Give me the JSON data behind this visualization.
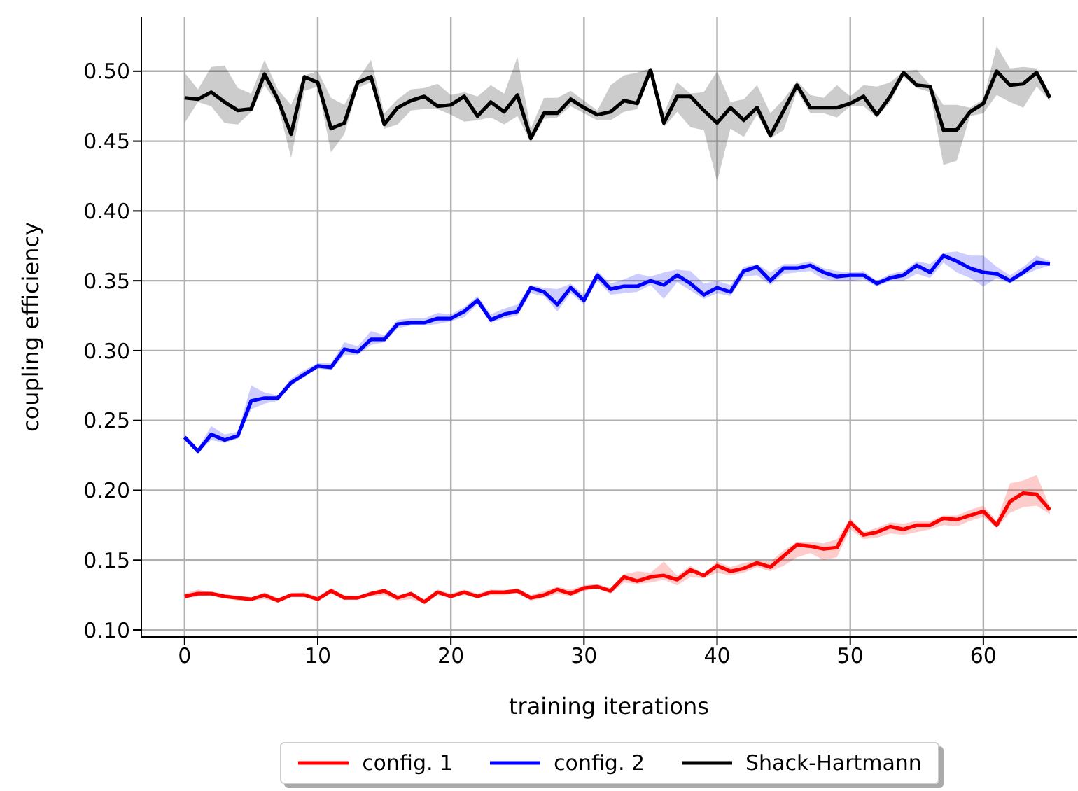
{
  "chart_data": {
    "type": "line",
    "xlabel": "training iterations",
    "ylabel": "coupling efficiency",
    "x": [
      0,
      1,
      2,
      3,
      4,
      5,
      6,
      7,
      8,
      9,
      10,
      11,
      12,
      13,
      14,
      15,
      16,
      17,
      18,
      19,
      20,
      21,
      22,
      23,
      24,
      25,
      26,
      27,
      28,
      29,
      30,
      31,
      32,
      33,
      34,
      35,
      36,
      37,
      38,
      39,
      40,
      41,
      42,
      43,
      44,
      45,
      46,
      47,
      48,
      49,
      50,
      51,
      52,
      53,
      54,
      55,
      56,
      57,
      58,
      59,
      60,
      61,
      62,
      63,
      64,
      65
    ],
    "xlim": [
      -3.25,
      67
    ],
    "xticks": [
      0,
      10,
      20,
      30,
      40,
      50,
      60
    ],
    "ylim": [
      0.095,
      0.539
    ],
    "yticks": [
      {
        "value": 0.1,
        "label": "0.10"
      },
      {
        "value": 0.15,
        "label": "0.15"
      },
      {
        "value": 0.2,
        "label": "0.20"
      },
      {
        "value": 0.25,
        "label": "0.25"
      },
      {
        "value": 0.3,
        "label": "0.30"
      },
      {
        "value": 0.35,
        "label": "0.35"
      },
      {
        "value": 0.4,
        "label": "0.40"
      },
      {
        "value": 0.45,
        "label": "0.45"
      },
      {
        "value": 0.5,
        "label": "0.50"
      }
    ],
    "grid": true,
    "legend": "bottom",
    "marker": "none",
    "line_style": "solid",
    "series": [
      {
        "name": "config. 1",
        "color": "#ff0000",
        "values": [
          0.124,
          0.126,
          0.126,
          0.124,
          0.123,
          0.122,
          0.125,
          0.121,
          0.125,
          0.125,
          0.122,
          0.128,
          0.123,
          0.123,
          0.126,
          0.128,
          0.123,
          0.126,
          0.12,
          0.127,
          0.124,
          0.127,
          0.124,
          0.127,
          0.127,
          0.128,
          0.123,
          0.125,
          0.129,
          0.126,
          0.13,
          0.131,
          0.128,
          0.138,
          0.135,
          0.138,
          0.139,
          0.136,
          0.143,
          0.139,
          0.146,
          0.142,
          0.144,
          0.148,
          0.145,
          0.153,
          0.161,
          0.16,
          0.158,
          0.159,
          0.177,
          0.168,
          0.17,
          0.174,
          0.172,
          0.175,
          0.175,
          0.18,
          0.179,
          0.182,
          0.185,
          0.175,
          0.192,
          0.198,
          0.197,
          0.186
        ],
        "lower": [
          0.123,
          0.124,
          0.125,
          0.123,
          0.121,
          0.121,
          0.122,
          0.12,
          0.124,
          0.124,
          0.121,
          0.126,
          0.122,
          0.122,
          0.124,
          0.125,
          0.121,
          0.122,
          0.119,
          0.125,
          0.123,
          0.125,
          0.123,
          0.125,
          0.125,
          0.126,
          0.121,
          0.123,
          0.126,
          0.124,
          0.128,
          0.13,
          0.126,
          0.134,
          0.133,
          0.134,
          0.136,
          0.132,
          0.138,
          0.137,
          0.141,
          0.139,
          0.141,
          0.145,
          0.142,
          0.146,
          0.152,
          0.155,
          0.15,
          0.152,
          0.172,
          0.165,
          0.166,
          0.169,
          0.168,
          0.17,
          0.172,
          0.175,
          0.174,
          0.178,
          0.181,
          0.173,
          0.184,
          0.188,
          0.189,
          0.183
        ],
        "upper": [
          0.126,
          0.129,
          0.127,
          0.126,
          0.124,
          0.123,
          0.127,
          0.123,
          0.126,
          0.127,
          0.124,
          0.13,
          0.125,
          0.124,
          0.127,
          0.129,
          0.125,
          0.127,
          0.122,
          0.129,
          0.126,
          0.129,
          0.126,
          0.129,
          0.128,
          0.13,
          0.125,
          0.128,
          0.131,
          0.129,
          0.132,
          0.133,
          0.13,
          0.14,
          0.142,
          0.141,
          0.149,
          0.139,
          0.146,
          0.14,
          0.149,
          0.145,
          0.148,
          0.15,
          0.149,
          0.157,
          0.163,
          0.163,
          0.162,
          0.165,
          0.18,
          0.17,
          0.173,
          0.177,
          0.176,
          0.178,
          0.178,
          0.182,
          0.182,
          0.186,
          0.189,
          0.178,
          0.205,
          0.207,
          0.211,
          0.188
        ]
      },
      {
        "name": "config. 2",
        "color": "#0000ff",
        "values": [
          0.238,
          0.228,
          0.24,
          0.236,
          0.239,
          0.264,
          0.266,
          0.266,
          0.277,
          0.283,
          0.289,
          0.288,
          0.301,
          0.299,
          0.308,
          0.308,
          0.319,
          0.32,
          0.32,
          0.323,
          0.323,
          0.328,
          0.336,
          0.322,
          0.326,
          0.328,
          0.345,
          0.342,
          0.333,
          0.345,
          0.336,
          0.354,
          0.344,
          0.346,
          0.346,
          0.35,
          0.347,
          0.354,
          0.348,
          0.34,
          0.345,
          0.342,
          0.357,
          0.36,
          0.35,
          0.359,
          0.359,
          0.361,
          0.356,
          0.353,
          0.354,
          0.354,
          0.348,
          0.352,
          0.354,
          0.361,
          0.356,
          0.368,
          0.364,
          0.359,
          0.356,
          0.355,
          0.35,
          0.356,
          0.363,
          0.362
        ],
        "lower": [
          0.236,
          0.227,
          0.236,
          0.234,
          0.237,
          0.258,
          0.262,
          0.264,
          0.275,
          0.281,
          0.287,
          0.286,
          0.297,
          0.297,
          0.304,
          0.306,
          0.316,
          0.318,
          0.318,
          0.319,
          0.321,
          0.324,
          0.333,
          0.32,
          0.323,
          0.325,
          0.341,
          0.339,
          0.328,
          0.341,
          0.333,
          0.35,
          0.34,
          0.341,
          0.342,
          0.347,
          0.337,
          0.349,
          0.343,
          0.337,
          0.341,
          0.339,
          0.353,
          0.354,
          0.347,
          0.355,
          0.356,
          0.357,
          0.351,
          0.35,
          0.35,
          0.351,
          0.346,
          0.35,
          0.35,
          0.355,
          0.352,
          0.363,
          0.356,
          0.352,
          0.346,
          0.352,
          0.348,
          0.354,
          0.358,
          0.361
        ],
        "upper": [
          0.24,
          0.23,
          0.246,
          0.24,
          0.242,
          0.275,
          0.27,
          0.268,
          0.28,
          0.286,
          0.291,
          0.291,
          0.306,
          0.303,
          0.314,
          0.311,
          0.322,
          0.323,
          0.323,
          0.327,
          0.326,
          0.331,
          0.339,
          0.326,
          0.33,
          0.333,
          0.347,
          0.345,
          0.344,
          0.348,
          0.34,
          0.357,
          0.348,
          0.351,
          0.355,
          0.353,
          0.356,
          0.358,
          0.357,
          0.348,
          0.35,
          0.347,
          0.36,
          0.362,
          0.356,
          0.362,
          0.362,
          0.364,
          0.359,
          0.357,
          0.356,
          0.357,
          0.35,
          0.355,
          0.357,
          0.364,
          0.362,
          0.37,
          0.371,
          0.368,
          0.368,
          0.36,
          0.354,
          0.36,
          0.368,
          0.364
        ]
      },
      {
        "name": "Shack-Hartmann",
        "color": "#000000",
        "values": [
          0.481,
          0.48,
          0.485,
          0.478,
          0.472,
          0.473,
          0.498,
          0.48,
          0.455,
          0.496,
          0.492,
          0.459,
          0.463,
          0.492,
          0.496,
          0.462,
          0.474,
          0.479,
          0.482,
          0.475,
          0.476,
          0.482,
          0.468,
          0.478,
          0.471,
          0.483,
          0.452,
          0.47,
          0.47,
          0.48,
          0.474,
          0.469,
          0.471,
          0.479,
          0.477,
          0.501,
          0.463,
          0.482,
          0.482,
          0.472,
          0.463,
          0.474,
          0.465,
          0.474,
          0.454,
          0.472,
          0.49,
          0.474,
          0.474,
          0.474,
          0.477,
          0.482,
          0.469,
          0.482,
          0.499,
          0.49,
          0.489,
          0.458,
          0.458,
          0.471,
          0.477,
          0.5,
          0.49,
          0.491,
          0.499,
          0.481
        ],
        "lower": [
          0.463,
          0.478,
          0.475,
          0.463,
          0.462,
          0.471,
          0.49,
          0.476,
          0.438,
          0.486,
          0.489,
          0.442,
          0.455,
          0.488,
          0.492,
          0.459,
          0.462,
          0.472,
          0.473,
          0.473,
          0.469,
          0.464,
          0.465,
          0.467,
          0.462,
          0.468,
          0.449,
          0.466,
          0.467,
          0.475,
          0.47,
          0.465,
          0.465,
          0.471,
          0.473,
          0.498,
          0.46,
          0.471,
          0.46,
          0.458,
          0.421,
          0.459,
          0.453,
          0.469,
          0.452,
          0.458,
          0.486,
          0.47,
          0.47,
          0.467,
          0.475,
          0.475,
          0.467,
          0.478,
          0.496,
          0.488,
          0.485,
          0.433,
          0.436,
          0.468,
          0.47,
          0.483,
          0.478,
          0.474,
          0.489,
          0.479
        ],
        "upper": [
          0.499,
          0.487,
          0.503,
          0.504,
          0.488,
          0.484,
          0.508,
          0.487,
          0.476,
          0.497,
          0.5,
          0.481,
          0.476,
          0.494,
          0.508,
          0.47,
          0.48,
          0.487,
          0.488,
          0.491,
          0.483,
          0.485,
          0.482,
          0.49,
          0.484,
          0.51,
          0.459,
          0.481,
          0.481,
          0.486,
          0.479,
          0.472,
          0.49,
          0.497,
          0.499,
          0.502,
          0.47,
          0.492,
          0.484,
          0.485,
          0.5,
          0.478,
          0.48,
          0.49,
          0.47,
          0.48,
          0.493,
          0.483,
          0.481,
          0.49,
          0.482,
          0.49,
          0.489,
          0.492,
          0.5,
          0.501,
          0.49,
          0.476,
          0.476,
          0.474,
          0.48,
          0.518,
          0.502,
          0.503,
          0.502,
          0.483
        ]
      }
    ]
  }
}
